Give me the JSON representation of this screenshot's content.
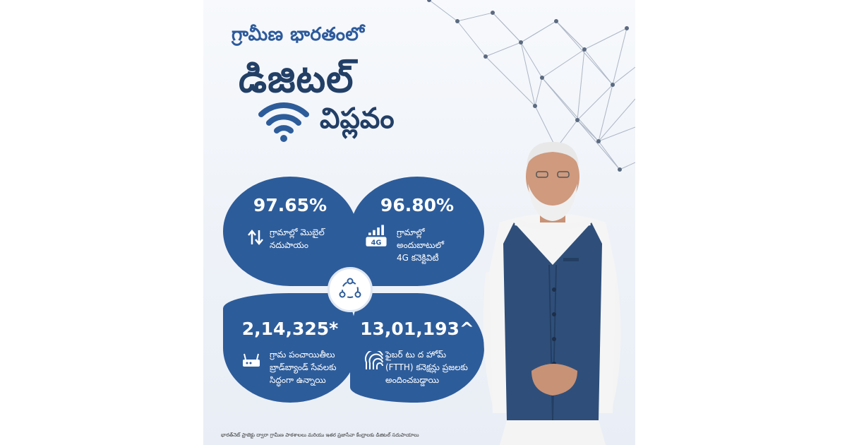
{
  "header": {
    "subtitle": "గ్రామీణ భారతంలో",
    "title": "డిజిటల్",
    "title_second": "విప్లవం"
  },
  "stats": [
    {
      "value": "97.65%",
      "label_line1": "గ్రామాల్లో మొబైల్",
      "label_line2": "నదుపాయం",
      "label_line3": "",
      "icon": "updown-arrows-icon"
    },
    {
      "value": "96.80%",
      "label_line1": "గ్రామాల్లో",
      "label_line2": "అందుబాటులో",
      "label_line3": "4G కనెక్టివిటీ",
      "icon": "4g-signal-icon",
      "icon_text": "4G"
    },
    {
      "value": "2,14,325*",
      "label_line1": "గ్రామ పంచాయితీలు",
      "label_line2": "బ్రాడ్‌బ్యాండ్ సేవలకు",
      "label_line3": "సిద్ధంగా ఉన్నాయి",
      "icon": "router-icon"
    },
    {
      "value": "13,01,193^",
      "label_line1": "ఫైబర్ టు ద హోమ్",
      "label_line2": "(FTTH) కనెక్షన్లు ప్రజలకు",
      "label_line3": "అందించబడ్డాయి",
      "icon": "fiber-icon"
    }
  ],
  "footnote": "భారత్‌నెట్ ప్రాజెక్టు ద్వారా గ్రామీణ పాఠశాలలు మరియు ఇతర ప్రజాసేవా కేంద్రాలకు డిజిటల్ సదుపాయాలు",
  "colors": {
    "primary": "#2d5c9a",
    "title": "#223f66",
    "accent": "#2c5a9c"
  }
}
